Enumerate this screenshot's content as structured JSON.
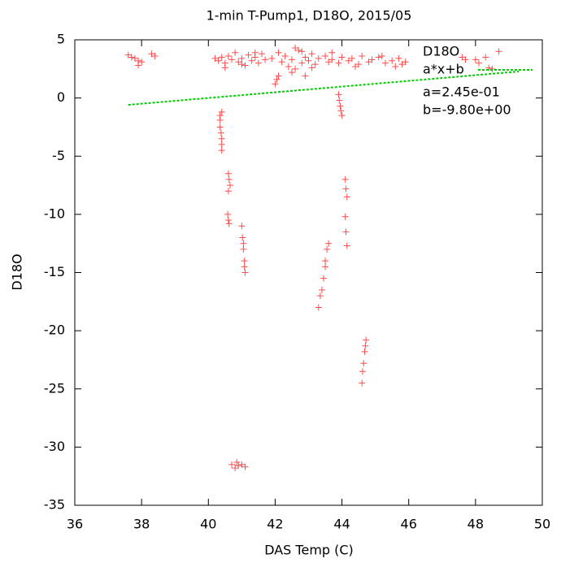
{
  "chart_data": {
    "type": "scatter",
    "title": "1-min T-Pump1, D18O, 2015/05",
    "x_label": "DAS Temp (C)",
    "y_label": "D18O",
    "xlim": [
      36,
      50
    ],
    "xticks": [
      36,
      38,
      40,
      42,
      44,
      46,
      48,
      50
    ],
    "ylim": [
      -35,
      5
    ],
    "yticks": [
      -35,
      -30,
      -25,
      -20,
      -15,
      -10,
      -5,
      0,
      5
    ],
    "grid": false,
    "legend": "top-right",
    "annotations": [
      "a=2.45e-01",
      "b=-9.80e+00"
    ],
    "series": [
      {
        "name": "D18O",
        "color": "#ff0000",
        "marker": "plus",
        "x": [
          37.6,
          37.7,
          37.8,
          37.9,
          37.9,
          38.0,
          38.3,
          38.4,
          40.2,
          40.3,
          40.4,
          40.5,
          40.6,
          40.7,
          40.8,
          40.9,
          41.0,
          41.1,
          41.2,
          41.3,
          41.4,
          41.5,
          41.6,
          41.7,
          41.9,
          42.1,
          42.2,
          42.3,
          42.4,
          42.5,
          42.6,
          42.7,
          42.8,
          42.9,
          43.0,
          43.1,
          43.2,
          43.3,
          43.5,
          43.6,
          43.7,
          43.9,
          44.0,
          44.2,
          44.3,
          44.5,
          44.6,
          44.8,
          44.9,
          45.1,
          45.3,
          45.5,
          45.7,
          45.8,
          45.9,
          40.5,
          41.0,
          41.4,
          42.5,
          42.8,
          43.1,
          43.7,
          44.4,
          45.2,
          45.6,
          42.6,
          42.9,
          42.0,
          42.05,
          42.1,
          47.6,
          47.7,
          48.0,
          48.1,
          48.3,
          48.4,
          48.5,
          48.7,
          40.35,
          40.35,
          40.35,
          40.38,
          40.4,
          40.4,
          40.4,
          40.4,
          40.6,
          40.62,
          40.65,
          40.6,
          40.58,
          40.6,
          40.62,
          41.0,
          41.02,
          41.05,
          41.05,
          41.08,
          41.08,
          41.1,
          40.7,
          40.8,
          40.85,
          40.9,
          41.0,
          41.1,
          43.3,
          43.35,
          43.4,
          43.45,
          43.5,
          43.5,
          43.55,
          43.6,
          43.9,
          43.92,
          43.95,
          43.97,
          44.0,
          44.1,
          44.12,
          44.15,
          44.1,
          44.12,
          44.15,
          44.6,
          44.62,
          44.65,
          44.68,
          44.7,
          44.72
        ],
        "values": [
          3.7,
          3.5,
          3.4,
          3.2,
          2.8,
          3.1,
          3.8,
          3.6,
          3.4,
          3.2,
          3.5,
          3.0,
          3.6,
          3.3,
          3.9,
          3.1,
          3.4,
          2.8,
          3.7,
          3.2,
          3.5,
          3.0,
          3.8,
          3.3,
          3.4,
          3.9,
          3.1,
          3.6,
          2.7,
          3.3,
          2.5,
          4.1,
          3.0,
          3.5,
          3.2,
          3.8,
          2.9,
          3.4,
          3.6,
          3.1,
          3.3,
          3.0,
          3.5,
          3.2,
          3.4,
          2.9,
          3.6,
          3.1,
          3.3,
          3.5,
          3.0,
          3.2,
          3.4,
          2.9,
          3.1,
          2.6,
          2.9,
          3.9,
          2.2,
          4.0,
          2.6,
          3.9,
          2.7,
          3.6,
          2.7,
          4.3,
          1.9,
          1.2,
          1.6,
          1.9,
          3.5,
          3.3,
          3.3,
          3.0,
          3.5,
          2.6,
          2.5,
          4.0,
          -1.5,
          -1.9,
          -2.5,
          -3.0,
          -3.5,
          -4.0,
          -4.5,
          -1.2,
          -6.5,
          -7.0,
          -7.5,
          -8.0,
          -10.0,
          -10.5,
          -10.8,
          -11.0,
          -12.0,
          -12.5,
          -13.0,
          -14.0,
          -14.5,
          -15.0,
          -31.5,
          -31.8,
          -31.3,
          -31.6,
          -31.5,
          -31.7,
          -18.0,
          -17.0,
          -16.5,
          -15.5,
          -14.5,
          -14.0,
          -13.0,
          -12.5,
          0.3,
          -0.2,
          -0.7,
          -1.1,
          -1.5,
          -7.0,
          -7.8,
          -8.5,
          -10.2,
          -11.5,
          -12.7,
          -24.5,
          -23.5,
          -22.8,
          -21.8,
          -21.3,
          -20.8
        ]
      },
      {
        "name": "a*x+b",
        "color": "#00cc00",
        "marker": "line",
        "x": [
          37.6,
          49.3
        ],
        "values": [
          -0.59,
          2.28
        ]
      }
    ]
  }
}
